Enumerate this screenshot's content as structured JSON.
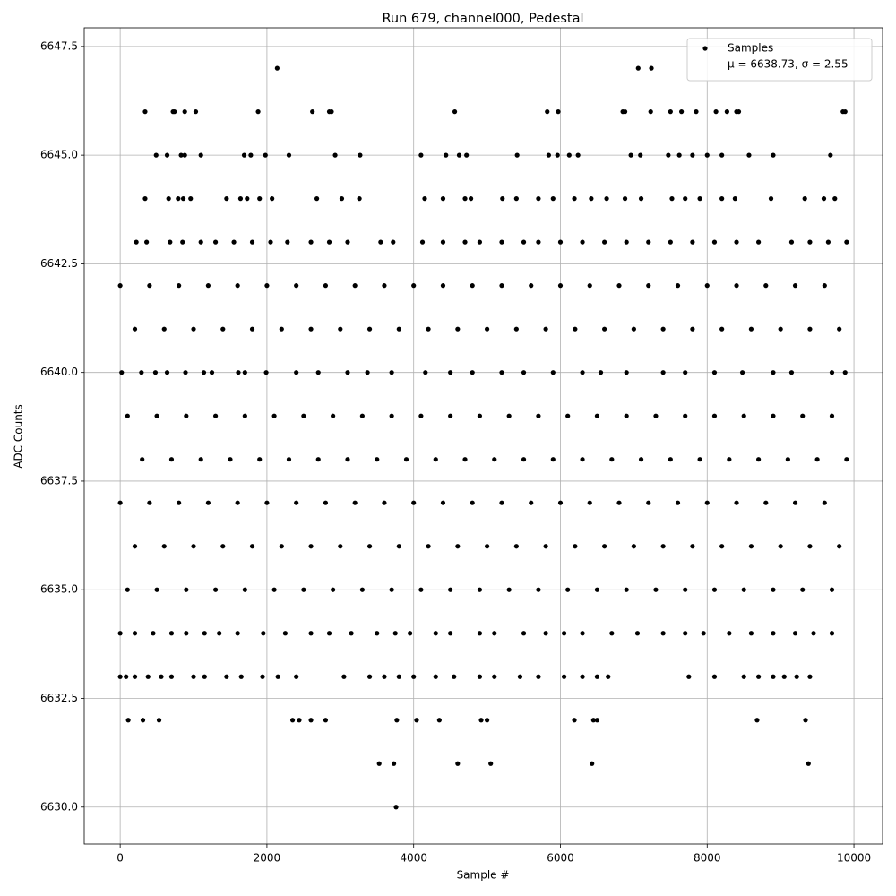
{
  "chart_data": {
    "type": "scatter",
    "title": "Run 679, channel000, Pedestal",
    "x_label": "Sample #",
    "y_label": "ADC Counts",
    "legend_note": "μ = 6638.73, σ = 2.55",
    "legend_position": "upper right",
    "grid": true,
    "xlim": [
      -490,
      10390
    ],
    "ylim": [
      6629.15,
      6647.93
    ],
    "xticks": [
      0,
      2000,
      4000,
      6000,
      8000,
      10000
    ],
    "yticks": [
      {
        "value": 6630,
        "label": "6630.0"
      },
      {
        "value": 6632.5,
        "label": "6632.5"
      },
      {
        "value": 6635,
        "label": "6635.0"
      },
      {
        "value": 6637.5,
        "label": "6637.5"
      },
      {
        "value": 6640,
        "label": "6640.0"
      },
      {
        "value": 6642.5,
        "label": "6642.5"
      },
      {
        "value": 6645,
        "label": "6645.0"
      },
      {
        "value": 6647.5,
        "label": "6647.5"
      }
    ],
    "series": [
      {
        "name": "Samples",
        "color": "#000000",
        "x": [
          2140,
          7060,
          7240,
          340,
          720,
          740,
          880,
          1030,
          1880,
          2620,
          2850,
          2880,
          4560,
          5820,
          5970,
          6850,
          6880,
          7230,
          7500,
          7650,
          7850,
          8120,
          8270,
          8400,
          8430,
          9850,
          9880,
          490,
          640,
          830,
          880,
          1100,
          1690,
          1780,
          1980,
          2300,
          2930,
          3270,
          4100,
          4440,
          4620,
          4720,
          5410,
          5840,
          5960,
          6120,
          6240,
          6960,
          7090,
          7470,
          7620,
          7800,
          8000,
          8200,
          8570,
          8900,
          9680,
          340,
          660,
          790,
          860,
          960,
          1450,
          1640,
          1730,
          1900,
          2070,
          2680,
          3020,
          3260,
          4150,
          4400,
          4700,
          4780,
          5210,
          5400,
          5700,
          5900,
          6190,
          6420,
          6630,
          6880,
          7100,
          7520,
          7700,
          7900,
          8200,
          8380,
          8870,
          9330,
          9590,
          9740,
          220,
          360,
          680,
          850,
          1100,
          1300,
          1550,
          1800,
          2050,
          2280,
          2600,
          2850,
          3100,
          3550,
          3720,
          4120,
          4400,
          4700,
          4900,
          5200,
          5500,
          5700,
          6000,
          6300,
          6600,
          6900,
          7200,
          7500,
          7800,
          8100,
          8400,
          8700,
          9150,
          9400,
          9650,
          9900,
          0,
          400,
          800,
          1200,
          1600,
          2000,
          2400,
          2800,
          3200,
          3600,
          4000,
          4400,
          4800,
          5200,
          5600,
          6000,
          6400,
          6800,
          7200,
          7600,
          8000,
          8400,
          8800,
          9200,
          9600,
          200,
          600,
          1000,
          1400,
          1800,
          2200,
          2600,
          3000,
          3400,
          3800,
          4200,
          4600,
          5000,
          5400,
          5800,
          6200,
          6600,
          7000,
          7400,
          7800,
          8200,
          8600,
          9000,
          9400,
          9800,
          20,
          290,
          480,
          640,
          890,
          1140,
          1250,
          1610,
          1700,
          1990,
          2400,
          2700,
          3100,
          3370,
          3700,
          4160,
          4500,
          4800,
          5200,
          5500,
          5900,
          6300,
          6550,
          6900,
          7400,
          7700,
          8100,
          8480,
          8900,
          9150,
          9700,
          9880,
          100,
          500,
          900,
          1300,
          1700,
          2100,
          2500,
          2900,
          3300,
          3700,
          4100,
          4500,
          4900,
          5300,
          5700,
          6100,
          6500,
          6900,
          7300,
          7700,
          8100,
          8500,
          8900,
          9300,
          9700,
          300,
          700,
          1100,
          1500,
          1900,
          2300,
          2700,
          3100,
          3500,
          3900,
          4300,
          4700,
          5100,
          5500,
          5900,
          6300,
          6700,
          7100,
          7500,
          7900,
          8300,
          8700,
          9100,
          9500,
          9900,
          0,
          400,
          800,
          1200,
          1600,
          2000,
          2400,
          2800,
          3200,
          3600,
          4000,
          4400,
          4800,
          5200,
          5600,
          6000,
          6400,
          6800,
          7200,
          7600,
          8000,
          8400,
          8800,
          9200,
          9600,
          200,
          600,
          1000,
          1400,
          1800,
          2200,
          2600,
          3000,
          3400,
          3800,
          4200,
          4600,
          5000,
          5400,
          5800,
          6200,
          6600,
          7000,
          7400,
          7800,
          8200,
          8600,
          9000,
          9400,
          9800,
          100,
          500,
          900,
          1300,
          1700,
          2100,
          2500,
          2900,
          3300,
          3700,
          4100,
          4500,
          4900,
          5300,
          5700,
          6100,
          6500,
          6900,
          7300,
          7700,
          8100,
          8500,
          8900,
          9300,
          9700,
          0,
          200,
          450,
          700,
          900,
          1150,
          1350,
          1600,
          1950,
          2250,
          2600,
          2850,
          3150,
          3500,
          3750,
          3950,
          4300,
          4500,
          4900,
          5100,
          5500,
          5800,
          6050,
          6300,
          6700,
          7050,
          7400,
          7700,
          7950,
          8300,
          8600,
          8900,
          9200,
          9450,
          9700,
          0,
          80,
          200,
          380,
          560,
          700,
          1000,
          1150,
          1450,
          1650,
          1940,
          2150,
          2400,
          3050,
          3400,
          3600,
          3800,
          4000,
          4300,
          4550,
          4900,
          5100,
          5450,
          5700,
          6050,
          6300,
          6500,
          6650,
          7750,
          8100,
          8500,
          8700,
          8900,
          9050,
          9220,
          9400,
          110,
          310,
          530,
          2350,
          2440,
          2600,
          2800,
          3770,
          4040,
          4350,
          4920,
          5000,
          6190,
          6450,
          6500,
          8680,
          9340,
          3530,
          3730,
          4600,
          5050,
          6430,
          9380,
          3760
        ],
        "values": [
          6647,
          6647,
          6647,
          6646,
          6646,
          6646,
          6646,
          6646,
          6646,
          6646,
          6646,
          6646,
          6646,
          6646,
          6646,
          6646,
          6646,
          6646,
          6646,
          6646,
          6646,
          6646,
          6646,
          6646,
          6646,
          6646,
          6646,
          6645,
          6645,
          6645,
          6645,
          6645,
          6645,
          6645,
          6645,
          6645,
          6645,
          6645,
          6645,
          6645,
          6645,
          6645,
          6645,
          6645,
          6645,
          6645,
          6645,
          6645,
          6645,
          6645,
          6645,
          6645,
          6645,
          6645,
          6645,
          6645,
          6645,
          6644,
          6644,
          6644,
          6644,
          6644,
          6644,
          6644,
          6644,
          6644,
          6644,
          6644,
          6644,
          6644,
          6644,
          6644,
          6644,
          6644,
          6644,
          6644,
          6644,
          6644,
          6644,
          6644,
          6644,
          6644,
          6644,
          6644,
          6644,
          6644,
          6644,
          6644,
          6644,
          6644,
          6644,
          6644,
          6643,
          6643,
          6643,
          6643,
          6643,
          6643,
          6643,
          6643,
          6643,
          6643,
          6643,
          6643,
          6643,
          6643,
          6643,
          6643,
          6643,
          6643,
          6643,
          6643,
          6643,
          6643,
          6643,
          6643,
          6643,
          6643,
          6643,
          6643,
          6643,
          6643,
          6643,
          6643,
          6643,
          6643,
          6643,
          6643,
          6642,
          6642,
          6642,
          6642,
          6642,
          6642,
          6642,
          6642,
          6642,
          6642,
          6642,
          6642,
          6642,
          6642,
          6642,
          6642,
          6642,
          6642,
          6642,
          6642,
          6642,
          6642,
          6642,
          6642,
          6642,
          6641,
          6641,
          6641,
          6641,
          6641,
          6641,
          6641,
          6641,
          6641,
          6641,
          6641,
          6641,
          6641,
          6641,
          6641,
          6641,
          6641,
          6641,
          6641,
          6641,
          6641,
          6641,
          6641,
          6641,
          6641,
          6640,
          6640,
          6640,
          6640,
          6640,
          6640,
          6640,
          6640,
          6640,
          6640,
          6640,
          6640,
          6640,
          6640,
          6640,
          6640,
          6640,
          6640,
          6640,
          6640,
          6640,
          6640,
          6640,
          6640,
          6640,
          6640,
          6640,
          6640,
          6640,
          6640,
          6640,
          6640,
          6639,
          6639,
          6639,
          6639,
          6639,
          6639,
          6639,
          6639,
          6639,
          6639,
          6639,
          6639,
          6639,
          6639,
          6639,
          6639,
          6639,
          6639,
          6639,
          6639,
          6639,
          6639,
          6639,
          6639,
          6639,
          6638,
          6638,
          6638,
          6638,
          6638,
          6638,
          6638,
          6638,
          6638,
          6638,
          6638,
          6638,
          6638,
          6638,
          6638,
          6638,
          6638,
          6638,
          6638,
          6638,
          6638,
          6638,
          6638,
          6638,
          6638,
          6637,
          6637,
          6637,
          6637,
          6637,
          6637,
          6637,
          6637,
          6637,
          6637,
          6637,
          6637,
          6637,
          6637,
          6637,
          6637,
          6637,
          6637,
          6637,
          6637,
          6637,
          6637,
          6637,
          6637,
          6637,
          6636,
          6636,
          6636,
          6636,
          6636,
          6636,
          6636,
          6636,
          6636,
          6636,
          6636,
          6636,
          6636,
          6636,
          6636,
          6636,
          6636,
          6636,
          6636,
          6636,
          6636,
          6636,
          6636,
          6636,
          6636,
          6635,
          6635,
          6635,
          6635,
          6635,
          6635,
          6635,
          6635,
          6635,
          6635,
          6635,
          6635,
          6635,
          6635,
          6635,
          6635,
          6635,
          6635,
          6635,
          6635,
          6635,
          6635,
          6635,
          6635,
          6635,
          6634,
          6634,
          6634,
          6634,
          6634,
          6634,
          6634,
          6634,
          6634,
          6634,
          6634,
          6634,
          6634,
          6634,
          6634,
          6634,
          6634,
          6634,
          6634,
          6634,
          6634,
          6634,
          6634,
          6634,
          6634,
          6634,
          6634,
          6634,
          6634,
          6634,
          6634,
          6634,
          6634,
          6634,
          6634,
          6633,
          6633,
          6633,
          6633,
          6633,
          6633,
          6633,
          6633,
          6633,
          6633,
          6633,
          6633,
          6633,
          6633,
          6633,
          6633,
          6633,
          6633,
          6633,
          6633,
          6633,
          6633,
          6633,
          6633,
          6633,
          6633,
          6633,
          6633,
          6633,
          6633,
          6633,
          6633,
          6633,
          6633,
          6633,
          6633,
          6632,
          6632,
          6632,
          6632,
          6632,
          6632,
          6632,
          6632,
          6632,
          6632,
          6632,
          6632,
          6632,
          6632,
          6632,
          6632,
          6632,
          6631,
          6631,
          6631,
          6631,
          6631,
          6631,
          6630
        ]
      }
    ]
  }
}
